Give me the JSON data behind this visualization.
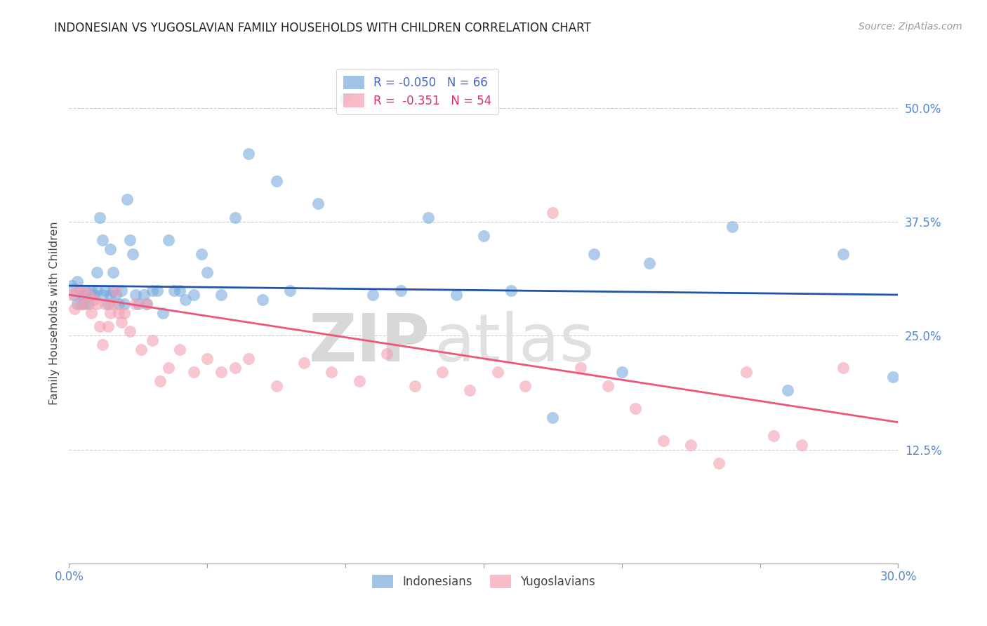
{
  "title": "INDONESIAN VS YUGOSLAVIAN FAMILY HOUSEHOLDS WITH CHILDREN CORRELATION CHART",
  "source": "Source: ZipAtlas.com",
  "ylabel": "Family Households with Children",
  "x_min": 0.0,
  "x_max": 0.3,
  "y_min": 0.0,
  "y_max": 0.55,
  "y_ticks": [
    0.125,
    0.25,
    0.375,
    0.5
  ],
  "y_tick_labels": [
    "12.5%",
    "25.0%",
    "37.5%",
    "50.0%"
  ],
  "x_tick_labels_show": [
    "0.0%",
    "30.0%"
  ],
  "x_tick_positions_show": [
    0.0,
    0.3
  ],
  "grid_color": "#cccccc",
  "background_color": "#ffffff",
  "indonesian_color": "#7aabdc",
  "yugoslavian_color": "#f4a0b0",
  "indonesian_line_color": "#2255aa",
  "yugoslavian_line_color": "#ee5577",
  "R_indonesian": -0.05,
  "N_indonesian": 66,
  "R_yugoslavian": -0.351,
  "N_yugoslavian": 54,
  "legend_label_indonesian": "Indonesians",
  "legend_label_yugoslavian": "Yugoslavians",
  "watermark_zip": "ZIP",
  "watermark_atlas": "atlas",
  "indonesian_x": [
    0.001,
    0.002,
    0.003,
    0.003,
    0.004,
    0.005,
    0.005,
    0.006,
    0.007,
    0.008,
    0.008,
    0.009,
    0.01,
    0.01,
    0.011,
    0.012,
    0.012,
    0.013,
    0.014,
    0.015,
    0.015,
    0.016,
    0.016,
    0.017,
    0.018,
    0.019,
    0.02,
    0.021,
    0.022,
    0.023,
    0.024,
    0.025,
    0.027,
    0.028,
    0.03,
    0.032,
    0.034,
    0.036,
    0.038,
    0.04,
    0.042,
    0.045,
    0.048,
    0.05,
    0.055,
    0.06,
    0.065,
    0.07,
    0.075,
    0.08,
    0.09,
    0.1,
    0.11,
    0.12,
    0.13,
    0.14,
    0.15,
    0.16,
    0.175,
    0.19,
    0.2,
    0.21,
    0.24,
    0.26,
    0.28,
    0.298
  ],
  "indonesian_y": [
    0.305,
    0.295,
    0.31,
    0.285,
    0.3,
    0.285,
    0.295,
    0.3,
    0.285,
    0.3,
    0.295,
    0.295,
    0.32,
    0.3,
    0.38,
    0.355,
    0.295,
    0.3,
    0.285,
    0.295,
    0.345,
    0.3,
    0.32,
    0.295,
    0.285,
    0.3,
    0.285,
    0.4,
    0.355,
    0.34,
    0.295,
    0.285,
    0.295,
    0.285,
    0.3,
    0.3,
    0.275,
    0.355,
    0.3,
    0.3,
    0.29,
    0.295,
    0.34,
    0.32,
    0.295,
    0.38,
    0.45,
    0.29,
    0.42,
    0.3,
    0.395,
    0.51,
    0.295,
    0.3,
    0.38,
    0.295,
    0.36,
    0.3,
    0.16,
    0.34,
    0.21,
    0.33,
    0.37,
    0.19,
    0.34,
    0.205
  ],
  "yugoslavian_x": [
    0.001,
    0.002,
    0.003,
    0.004,
    0.005,
    0.006,
    0.007,
    0.008,
    0.009,
    0.01,
    0.011,
    0.012,
    0.013,
    0.014,
    0.015,
    0.016,
    0.017,
    0.018,
    0.019,
    0.02,
    0.022,
    0.024,
    0.026,
    0.028,
    0.03,
    0.033,
    0.036,
    0.04,
    0.045,
    0.05,
    0.055,
    0.06,
    0.065,
    0.075,
    0.085,
    0.095,
    0.105,
    0.115,
    0.125,
    0.135,
    0.145,
    0.155,
    0.165,
    0.175,
    0.185,
    0.195,
    0.205,
    0.215,
    0.225,
    0.235,
    0.245,
    0.255,
    0.265,
    0.28
  ],
  "yugoslavian_y": [
    0.295,
    0.28,
    0.3,
    0.285,
    0.3,
    0.285,
    0.295,
    0.275,
    0.29,
    0.285,
    0.26,
    0.24,
    0.285,
    0.26,
    0.275,
    0.285,
    0.3,
    0.275,
    0.265,
    0.275,
    0.255,
    0.285,
    0.235,
    0.285,
    0.245,
    0.2,
    0.215,
    0.235,
    0.21,
    0.225,
    0.21,
    0.215,
    0.225,
    0.195,
    0.22,
    0.21,
    0.2,
    0.23,
    0.195,
    0.21,
    0.19,
    0.21,
    0.195,
    0.385,
    0.215,
    0.195,
    0.17,
    0.135,
    0.13,
    0.11,
    0.21,
    0.14,
    0.13,
    0.215
  ]
}
